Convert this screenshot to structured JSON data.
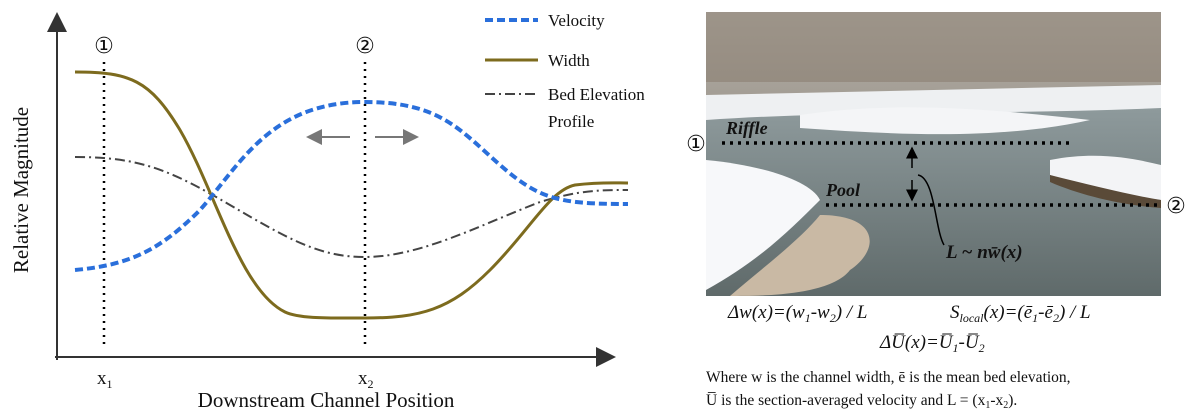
{
  "left_panel": {
    "y_axis_label": "Relative Magnitude",
    "x_axis_label": "Downstream Channel Position",
    "markers": [
      "①",
      "②"
    ],
    "x_labels": [
      [
        "x",
        "1"
      ],
      [
        "x",
        "2"
      ]
    ],
    "legend": [
      "Velocity",
      "Width",
      "Bed Elevation",
      "Profile"
    ]
  },
  "right_panel": {
    "markers": [
      "①",
      "②"
    ],
    "riffle": "Riffle",
    "pool": "Pool",
    "length": "L ~ nw̄(x)",
    "equations": [
      [
        "Δw(x)=(w",
        "1",
        "-w",
        "2",
        ") / L"
      ],
      [
        "S",
        "local",
        "(x)=(ē",
        "1",
        "-ē",
        "2",
        ") / L"
      ],
      [
        "ΔU̅(x)=U̅",
        "1",
        "-U̅",
        "2"
      ]
    ],
    "caption": [
      [
        "Where w is the channel width, ē is the mean bed elevation,"
      ],
      [
        "U̅ is the section-averaged velocity and L = (x",
        "1",
        "-x",
        "2",
        ")."
      ]
    ]
  }
}
